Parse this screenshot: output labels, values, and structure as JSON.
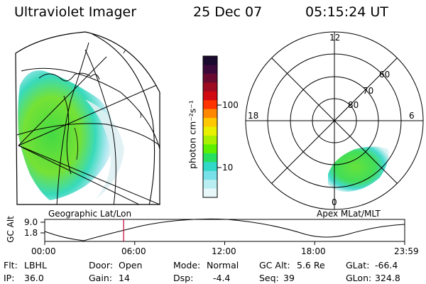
{
  "header": {
    "instrument": "Ultraviolet Imager",
    "date": "25 Dec 07",
    "time": "05:15:24 UT"
  },
  "geo_panel": {
    "label": "Geographic Lat/Lon"
  },
  "polar_panel": {
    "label": "Apex MLat/MLT",
    "mlt_labels": [
      "12",
      "18",
      "6",
      "0"
    ],
    "lat_labels": [
      "60",
      "70",
      "80"
    ]
  },
  "colorbar": {
    "label": "photon cm⁻²s⁻¹",
    "ticks": [
      "100",
      "10"
    ],
    "colors": [
      "#1a0a2e",
      "#3b0a3a",
      "#6a0a30",
      "#9e0a22",
      "#d00a10",
      "#ff3300",
      "#ff8800",
      "#ffc800",
      "#e8f000",
      "#a8f000",
      "#5cf000",
      "#28e060",
      "#30d8c8",
      "#78e0e8",
      "#b8eef2",
      "#e8f8fa"
    ]
  },
  "timeline": {
    "ylabel": "GC Alt",
    "y_ticks": [
      "9.0",
      "1.8"
    ],
    "x_ticks": [
      "00:00",
      "06:00",
      "12:00",
      "18:00",
      "23:59"
    ],
    "marker_time_hours": 5.26
  },
  "info": {
    "flt_label": "Flt:",
    "flt_value": "LBHL",
    "door_label": "Door:",
    "door_value": "Open",
    "mode_label": "Mode:",
    "mode_value": "Normal",
    "gcalt_label": "GC Alt:",
    "gcalt_value": "5.6 Re",
    "glat_label": "GLat:",
    "glat_value": "-66.4",
    "ip_label": "IP:",
    "ip_value": "36.0",
    "gain_label": "Gain:",
    "gain_value": "14",
    "dsp_label": "Dsp:",
    "dsp_value": "-4.4",
    "seq_label": "Seq:",
    "seq_value": "39",
    "glon_label": "GLon:",
    "glon_value": "324.8"
  }
}
